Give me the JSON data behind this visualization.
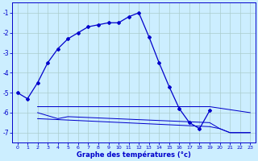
{
  "xlabel": "Graphe des températures (°c)",
  "background_color": "#cceeff",
  "grid_color": "#aacccc",
  "line_color": "#0000cc",
  "xlim": [
    -0.5,
    23.5
  ],
  "ylim": [
    -7.5,
    -0.5
  ],
  "yticks": [
    -7,
    -6,
    -5,
    -4,
    -3,
    -2,
    -1
  ],
  "xticks": [
    0,
    1,
    2,
    3,
    4,
    5,
    6,
    7,
    8,
    9,
    10,
    11,
    12,
    13,
    14,
    15,
    16,
    17,
    18,
    19,
    20,
    21,
    22,
    23
  ],
  "series1_x": [
    0,
    1,
    2,
    3,
    4,
    5,
    6,
    7,
    8,
    9,
    10,
    11,
    12,
    13,
    14,
    15,
    16,
    17,
    18,
    19
  ],
  "series1_y": [
    -5.0,
    -5.3,
    -4.5,
    -3.5,
    -2.8,
    -2.3,
    -2.0,
    -1.7,
    -1.6,
    -1.5,
    -1.5,
    -1.2,
    -1.0,
    -2.2,
    -3.5,
    -4.7,
    -5.8,
    -6.5,
    -6.8,
    -5.9
  ],
  "series2_x": [
    2,
    19,
    23
  ],
  "series2_y": [
    -5.7,
    -5.7,
    -6.0
  ],
  "series3_x": [
    2,
    4,
    5,
    19,
    20,
    21,
    22,
    23
  ],
  "series3_y": [
    -6.0,
    -6.3,
    -6.2,
    -6.5,
    -6.8,
    -7.0,
    -7.0,
    -7.0
  ],
  "series4_x": [
    2,
    19,
    20,
    21,
    22,
    23
  ],
  "series4_y": [
    -6.3,
    -6.7,
    -6.8,
    -7.0,
    -7.0,
    -7.0
  ],
  "marker_style": "D",
  "marker_size": 2.0,
  "line_width": 0.9
}
